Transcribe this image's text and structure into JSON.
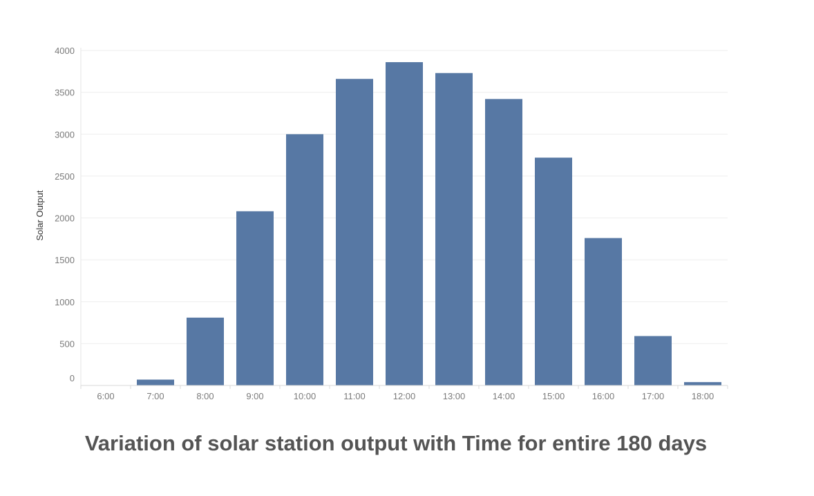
{
  "chart_data": {
    "type": "bar",
    "title": "Variation of solar station output with Time for entire 180 days",
    "xlabel": "",
    "ylabel": "Solar Output",
    "categories": [
      "6:00",
      "7:00",
      "8:00",
      "9:00",
      "10:00",
      "11:00",
      "12:00",
      "13:00",
      "14:00",
      "15:00",
      "16:00",
      "17:00",
      "18:00"
    ],
    "values": [
      0,
      70,
      810,
      2080,
      3000,
      3660,
      3860,
      3730,
      3420,
      2720,
      1760,
      590,
      40
    ],
    "ylim": [
      0,
      4000
    ],
    "yticks": [
      "0",
      "500",
      "1000",
      "1500",
      "2000",
      "2500",
      "3000",
      "3500",
      "4000"
    ],
    "grid": true,
    "legend": "none",
    "bar_color": "#5778a4"
  }
}
